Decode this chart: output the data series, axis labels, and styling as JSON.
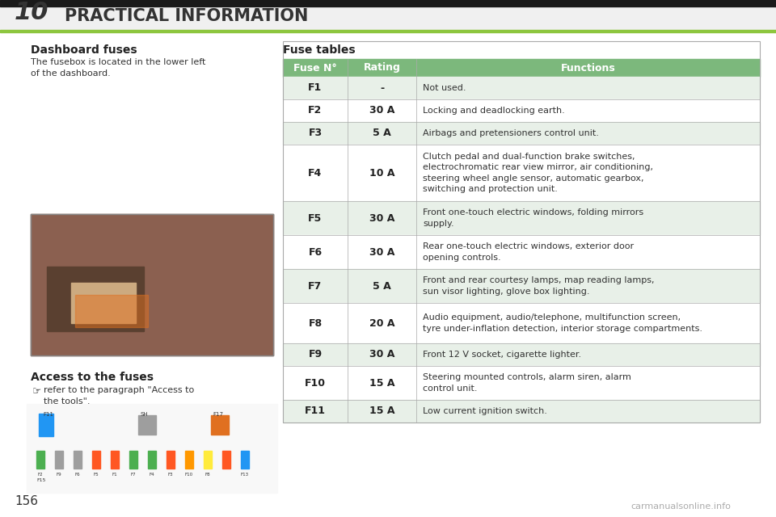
{
  "page_number": "10",
  "page_title": "PRACTICAL INFORMATION",
  "bg_color": "#ffffff",
  "header_bg": "#1a1a1a",
  "header_line_color": "#8dc63f",
  "section_title_left": "Dashboard fuses",
  "section_body_left": "The fusebox is located in the lower left\nof the dashboard.",
  "access_title": "Access to the fuses",
  "access_body": "refer to the paragraph \"Access to\nthe tools\".",
  "fuse_tables_title": "Fuse tables",
  "table_header_bg": "#7cb87c",
  "table_row_alt_bg": "#e8f0e8",
  "table_row_bg": "#ffffff",
  "table_border_color": "#aaaaaa",
  "col_headers": [
    "Fuse N°",
    "Rating",
    "Functions"
  ],
  "fuses": [
    [
      "F1",
      "-",
      "Not used."
    ],
    [
      "F2",
      "30 A",
      "Locking and deadlocking earth."
    ],
    [
      "F3",
      "5 A",
      "Airbags and pretensioners control unit."
    ],
    [
      "F4",
      "10 A",
      "Clutch pedal and dual-function brake switches,\nelectrochromatic rear view mirror, air conditioning,\nsteering wheel angle sensor, automatic gearbox,\nswitching and protection unit."
    ],
    [
      "F5",
      "30 A",
      "Front one-touch electric windows, folding mirrors\nsupply."
    ],
    [
      "F6",
      "30 A",
      "Rear one-touch electric windows, exterior door\nopening controls."
    ],
    [
      "F7",
      "5 A",
      "Front and rear courtesy lamps, map reading lamps,\nsun visor lighting, glove box lighting."
    ],
    [
      "F8",
      "20 A",
      "Audio equipment, audio/telephone, multifunction screen,\ntyre under-inflation detection, interior storage compartments."
    ],
    [
      "F9",
      "30 A",
      "Front 12 V socket, cigarette lighter."
    ],
    [
      "F10",
      "15 A",
      "Steering mounted controls, alarm siren, alarm\ncontrol unit."
    ],
    [
      "F11",
      "15 A",
      "Low current ignition switch."
    ]
  ],
  "footer_text": "156",
  "watermark_text": "carmanualsonline.info"
}
